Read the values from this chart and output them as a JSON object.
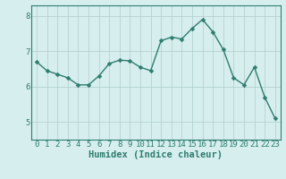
{
  "x": [
    0,
    1,
    2,
    3,
    4,
    5,
    6,
    7,
    8,
    9,
    10,
    11,
    12,
    13,
    14,
    15,
    16,
    17,
    18,
    19,
    20,
    21,
    22,
    23
  ],
  "y": [
    6.7,
    6.45,
    6.35,
    6.25,
    6.05,
    6.05,
    6.3,
    6.65,
    6.75,
    6.73,
    6.55,
    6.45,
    7.3,
    7.4,
    7.35,
    7.65,
    7.9,
    7.55,
    7.05,
    6.25,
    6.05,
    6.55,
    5.7,
    5.1
  ],
  "line_color": "#2e7d6e",
  "marker_color": "#2e7d6e",
  "bg_color": "#d6eeee",
  "grid_color": "#b0cccc",
  "xlabel": "Humidex (Indice chaleur)",
  "ylim": [
    4.5,
    8.3
  ],
  "xlim": [
    -0.5,
    23.5
  ],
  "yticks": [
    5,
    6,
    7,
    8
  ],
  "xticks": [
    0,
    1,
    2,
    3,
    4,
    5,
    6,
    7,
    8,
    9,
    10,
    11,
    12,
    13,
    14,
    15,
    16,
    17,
    18,
    19,
    20,
    21,
    22,
    23
  ],
  "tick_fontsize": 6.5,
  "xlabel_fontsize": 7.5,
  "linewidth": 1.0,
  "markersize": 2.5
}
